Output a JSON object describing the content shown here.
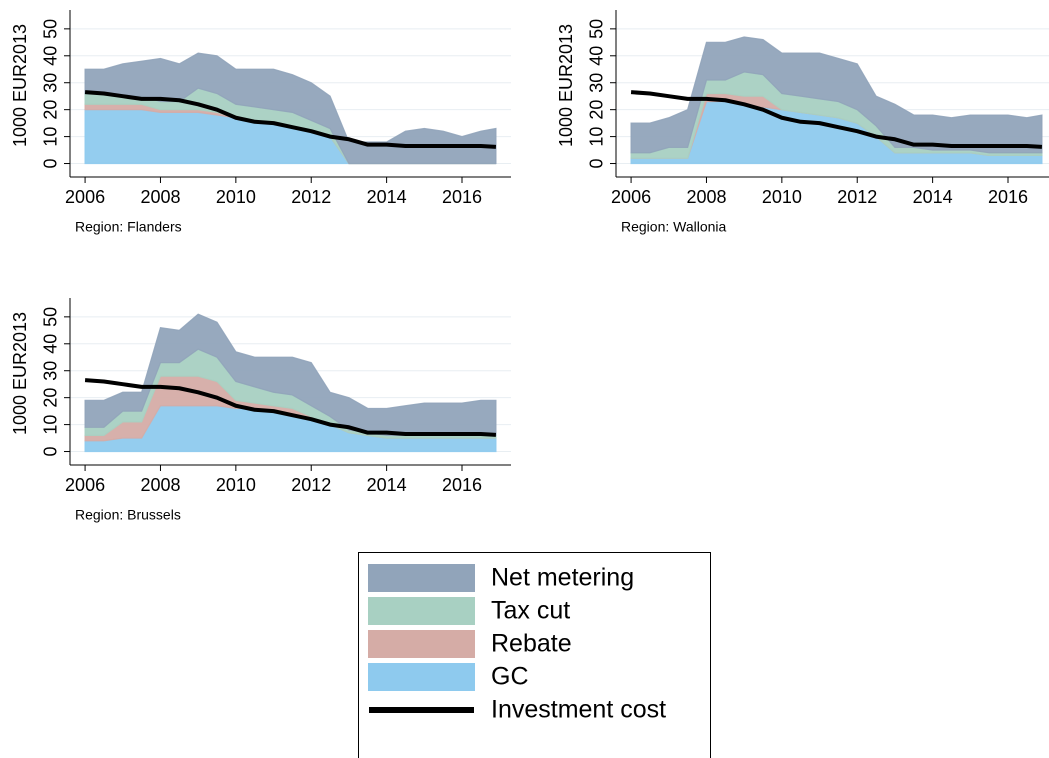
{
  "chart_data": [
    {
      "type": "area",
      "region_label": "Region: Flanders",
      "ylabel": "1000 EUR2013",
      "x": [
        2006,
        2006.5,
        2007,
        2007.5,
        2008,
        2008.5,
        2009,
        2009.5,
        2010,
        2010.5,
        2011,
        2011.5,
        2012,
        2012.5,
        2013,
        2013.5,
        2014,
        2014.5,
        2015,
        2015.5,
        2016,
        2016.5,
        2016.9
      ],
      "xlim": [
        2005.6,
        2017.3
      ],
      "ylim": [
        -5,
        57
      ],
      "xticks": [
        2006,
        2008,
        2010,
        2012,
        2014,
        2016
      ],
      "yticks": [
        0,
        10,
        20,
        30,
        40,
        50
      ],
      "grid": true,
      "series": [
        {
          "name": "Net metering",
          "color": "#91a4ba",
          "values": [
            9,
            9,
            12,
            13,
            16,
            14,
            13,
            14,
            13,
            14,
            15,
            14,
            14,
            12,
            8,
            8,
            8,
            12,
            13,
            12,
            10,
            12,
            13
          ]
        },
        {
          "name": "Tax cut",
          "color": "#a8d0c2",
          "values": [
            4,
            4,
            3,
            3,
            3,
            3,
            8,
            7,
            5,
            5,
            5,
            5,
            4,
            3,
            0,
            0,
            0,
            0,
            0,
            0,
            0,
            0,
            0
          ]
        },
        {
          "name": "Rebate",
          "color": "#d5aca6",
          "values": [
            2,
            2,
            2,
            2,
            1,
            1,
            1,
            1,
            0,
            0,
            0,
            0,
            0,
            0,
            0,
            0,
            0,
            0,
            0,
            0,
            0,
            0,
            0
          ]
        },
        {
          "name": "GC",
          "color": "#8ecaee",
          "values": [
            20,
            20,
            20,
            20,
            19,
            19,
            19,
            18,
            17,
            16,
            15,
            14,
            12,
            10,
            0,
            0,
            0,
            0,
            0,
            0,
            0,
            0,
            0
          ]
        },
        {
          "name": "Investment cost",
          "color": "#000000",
          "type": "line",
          "values": [
            26.5,
            26,
            25,
            24,
            24,
            23.5,
            22,
            20,
            17,
            15.5,
            15,
            13.5,
            12,
            10,
            9,
            7,
            7,
            6.5,
            6.5,
            6.5,
            6.5,
            6.5,
            6.2
          ]
        }
      ]
    },
    {
      "type": "area",
      "region_label": "Region: Wallonia",
      "ylabel": "1000 EUR2013",
      "x": [
        2006,
        2006.5,
        2007,
        2007.5,
        2008,
        2008.5,
        2009,
        2009.5,
        2010,
        2010.5,
        2011,
        2011.5,
        2012,
        2012.5,
        2013,
        2013.5,
        2014,
        2014.5,
        2015,
        2015.5,
        2016,
        2016.5,
        2016.9
      ],
      "xlim": [
        2005.6,
        2017.3
      ],
      "ylim": [
        -5,
        57
      ],
      "xticks": [
        2006,
        2008,
        2010,
        2012,
        2014,
        2016
      ],
      "yticks": [
        0,
        10,
        20,
        30,
        40,
        50
      ],
      "grid": true,
      "series": [
        {
          "name": "Net metering",
          "color": "#91a4ba",
          "values": [
            11,
            11,
            11,
            14,
            14,
            14,
            13,
            13,
            15,
            16,
            17,
            16,
            17,
            11,
            16,
            12,
            13,
            12,
            13,
            14,
            14,
            13,
            14
          ]
        },
        {
          "name": "Tax cut",
          "color": "#a8d0c2",
          "values": [
            2,
            2,
            4,
            4,
            5,
            5,
            9,
            8,
            6,
            6,
            6,
            6,
            5,
            4,
            2,
            2,
            1,
            1,
            1,
            1,
            1,
            1,
            1
          ]
        },
        {
          "name": "Rebate",
          "color": "#d5aca6",
          "values": [
            0,
            0,
            0,
            0,
            3,
            3,
            3,
            4,
            0,
            0,
            0,
            0,
            0,
            0,
            0,
            0,
            0,
            0,
            0,
            0,
            0,
            0,
            0
          ]
        },
        {
          "name": "GC",
          "color": "#8ecaee",
          "values": [
            2,
            2,
            2,
            2,
            23,
            23,
            22,
            21,
            20,
            19,
            18,
            17,
            15,
            10,
            4,
            4,
            4,
            4,
            4,
            3,
            3,
            3,
            3
          ]
        },
        {
          "name": "Investment cost",
          "color": "#000000",
          "type": "line",
          "values": [
            26.5,
            26,
            25,
            24,
            24,
            23.5,
            22,
            20,
            17,
            15.5,
            15,
            13.5,
            12,
            10,
            9,
            7,
            7,
            6.5,
            6.5,
            6.5,
            6.5,
            6.5,
            6.2
          ]
        }
      ]
    },
    {
      "type": "area",
      "region_label": "Region: Brussels",
      "ylabel": "1000 EUR2013",
      "x": [
        2006,
        2006.5,
        2007,
        2007.5,
        2008,
        2008.5,
        2009,
        2009.5,
        2010,
        2010.5,
        2011,
        2011.5,
        2012,
        2012.5,
        2013,
        2013.5,
        2014,
        2014.5,
        2015,
        2015.5,
        2016,
        2016.5,
        2016.9
      ],
      "xlim": [
        2005.6,
        2017.3
      ],
      "ylim": [
        -5,
        57
      ],
      "xticks": [
        2006,
        2008,
        2010,
        2012,
        2014,
        2016
      ],
      "yticks": [
        0,
        10,
        20,
        30,
        40,
        50
      ],
      "grid": true,
      "series": [
        {
          "name": "Net metering",
          "color": "#91a4ba",
          "values": [
            10,
            10,
            7,
            7,
            13,
            12,
            13,
            13,
            11,
            11,
            13,
            14,
            16,
            9,
            12,
            9,
            10,
            11,
            12,
            12,
            12,
            13,
            13
          ]
        },
        {
          "name": "Tax cut",
          "color": "#a8d0c2",
          "values": [
            3,
            3,
            4,
            4,
            5,
            5,
            10,
            9,
            7,
            6,
            5,
            5,
            4,
            3,
            1,
            1,
            1,
            1,
            1,
            1,
            1,
            1,
            1
          ]
        },
        {
          "name": "Rebate",
          "color": "#d5aca6",
          "values": [
            2,
            2,
            6,
            6,
            11,
            11,
            11,
            9,
            3,
            2,
            2,
            2,
            1,
            0,
            0,
            0,
            0,
            0,
            0,
            0,
            0,
            0,
            0
          ]
        },
        {
          "name": "GC",
          "color": "#8ecaee",
          "values": [
            4,
            4,
            5,
            5,
            17,
            17,
            17,
            17,
            16,
            16,
            15,
            14,
            12,
            10,
            7,
            6,
            5,
            5,
            5,
            5,
            5,
            5,
            5
          ]
        },
        {
          "name": "Investment cost",
          "color": "#000000",
          "type": "line",
          "values": [
            26.5,
            26,
            25,
            24,
            24,
            23.5,
            22,
            20,
            17,
            15.5,
            15,
            13.5,
            12,
            10,
            9,
            7,
            7,
            6.5,
            6.5,
            6.5,
            6.5,
            6.5,
            6.2
          ]
        }
      ]
    }
  ]
}
